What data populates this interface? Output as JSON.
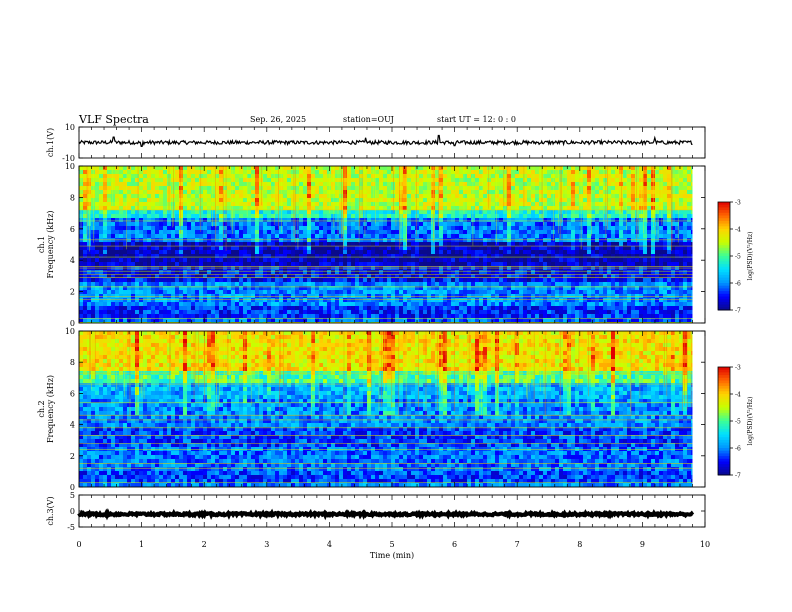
{
  "header": {
    "title": "VLF Spectra",
    "date": "Sep. 26, 2025",
    "station": "station=OUJ",
    "start": "start UT =   12: 0  : 0"
  },
  "colors": {
    "colormap": [
      "#000000",
      "#0a0a8c",
      "#0000ff",
      "#0096ff",
      "#00e0ff",
      "#3cff96",
      "#c8ff00",
      "#ffd200",
      "#ff6400",
      "#e00000",
      "#ffffff"
    ]
  },
  "chart_data": [
    {
      "type": "line",
      "name": "ch1-waveform",
      "ylabel": "ch.1(V)",
      "ylim": [
        -10,
        10
      ],
      "yticks": [
        "10",
        "-10"
      ],
      "baseline": 0,
      "noise_amplitude": 1.2,
      "spikes": [
        {
          "t": 0.55,
          "v": 3.5
        },
        {
          "t": 1.0,
          "v": -2.5
        },
        {
          "t": 4.58,
          "v": 3.0
        },
        {
          "t": 5.75,
          "v": 4.5
        },
        {
          "t": 6.0,
          "v": -2.0
        },
        {
          "t": 9.2,
          "v": 3.0
        }
      ]
    },
    {
      "type": "heatmap",
      "name": "ch1-spectrogram",
      "ylabel": "ch.1\nFrequency (kHz)",
      "ylim": [
        0,
        10
      ],
      "yticks": [
        "0",
        "2",
        "4",
        "6",
        "8",
        "10"
      ],
      "xlim": [
        0,
        10
      ],
      "data_end_time": 9.8,
      "colorbar": {
        "label": "log(PSD)(V²/Hz)",
        "range": [
          -7,
          -3
        ],
        "ticks": [
          "-3",
          "-4",
          "-5",
          "-6",
          "-7"
        ]
      },
      "bands": [
        {
          "f0": 0.0,
          "f1": 0.3,
          "level": -6.2
        },
        {
          "f0": 0.3,
          "f1": 1.0,
          "level": -6.4
        },
        {
          "f0": 1.0,
          "f1": 2.5,
          "level": -6.0
        },
        {
          "f0": 2.5,
          "f1": 3.6,
          "level": -6.5
        },
        {
          "f0": 3.6,
          "f1": 5.2,
          "level": -6.8
        },
        {
          "f0": 5.2,
          "f1": 6.7,
          "level": -6.1
        },
        {
          "f0": 6.7,
          "f1": 7.3,
          "level": -5.3
        },
        {
          "f0": 7.3,
          "f1": 10.0,
          "level": -4.5
        }
      ],
      "lines_khz": [
        0.3,
        1.5,
        1.7,
        2.3,
        2.9,
        3.1,
        3.3,
        3.5,
        3.6,
        4.2,
        4.9,
        5.3,
        6.5,
        7.2
      ]
    },
    {
      "type": "heatmap",
      "name": "ch2-spectrogram",
      "ylabel": "ch.2\nFrequency (kHz)",
      "ylim": [
        0,
        10
      ],
      "yticks": [
        "0",
        "2",
        "4",
        "6",
        "8",
        "10"
      ],
      "xlim": [
        0,
        10
      ],
      "data_end_time": 9.8,
      "colorbar": {
        "label": "log(PSD)(V²/Hz)",
        "range": [
          -7,
          -3
        ],
        "ticks": [
          "-3",
          "-4",
          "-5",
          "-6",
          "-7"
        ]
      },
      "bands": [
        {
          "f0": 0.0,
          "f1": 0.3,
          "level": -6.0
        },
        {
          "f0": 0.3,
          "f1": 1.0,
          "level": -6.3
        },
        {
          "f0": 1.0,
          "f1": 2.5,
          "level": -6.1
        },
        {
          "f0": 2.5,
          "f1": 3.8,
          "level": -6.3
        },
        {
          "f0": 3.8,
          "f1": 5.6,
          "level": -6.0
        },
        {
          "f0": 5.6,
          "f1": 6.7,
          "level": -5.8
        },
        {
          "f0": 6.7,
          "f1": 7.4,
          "level": -5.0
        },
        {
          "f0": 7.4,
          "f1": 10.0,
          "level": -4.2
        }
      ],
      "lines_khz": [
        0.3,
        1.2,
        1.5,
        2.4,
        2.8,
        3.3,
        3.8,
        4.3,
        4.6,
        5.4,
        6.6,
        7.3
      ]
    },
    {
      "type": "line",
      "name": "ch3-waveform",
      "ylabel": "ch.3(V)",
      "ylim": [
        -5,
        5
      ],
      "yticks": [
        "5",
        "0",
        "-5"
      ],
      "baseline": -1,
      "noise_amplitude": 0.35
    }
  ],
  "xaxis": {
    "label": "Time (min)",
    "ticks": [
      "0",
      "1",
      "2",
      "3",
      "4",
      "5",
      "6",
      "7",
      "8",
      "9",
      "10"
    ]
  }
}
